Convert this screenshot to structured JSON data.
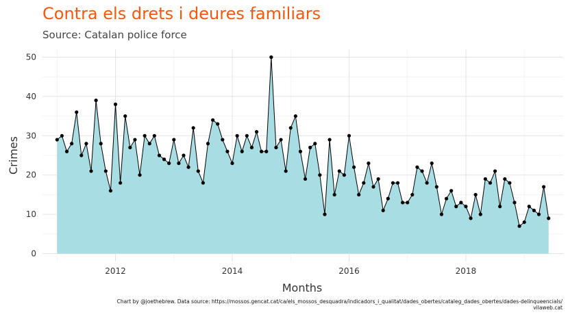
{
  "chart_data": {
    "type": "area",
    "title": "Contra els drets i deures familiars",
    "subtitle": "Source: Catalan police force",
    "xlabel": "Months",
    "ylabel": "Crimes",
    "caption": "Chart by @joethebrew. Data source: https://mossos.gencat.cat/ca/els_mossos_desquadra/indicadors_i_qualitat/dades_obertes/cataleg_dades_obertes/dades-delinqueencials/",
    "caption_site": "vilaweb.cat",
    "x_start": "2011-01",
    "x_ticks": [
      "2012",
      "2014",
      "2016",
      "2018"
    ],
    "xlim": [
      "2010-10",
      "2019-09"
    ],
    "y_ticks": [
      "0",
      "10",
      "20",
      "30",
      "40",
      "50"
    ],
    "ylim": [
      -2,
      52
    ],
    "grid": true,
    "fill_color": "#a8dde3",
    "line_color": "#000000",
    "values": [
      29,
      30,
      26,
      28,
      36,
      25,
      28,
      21,
      39,
      28,
      21,
      16,
      38,
      18,
      35,
      27,
      29,
      20,
      30,
      28,
      30,
      25,
      24,
      23,
      29,
      23,
      25,
      22,
      32,
      21,
      18,
      28,
      34,
      33,
      29,
      26,
      23,
      30,
      26,
      30,
      27,
      31,
      26,
      26,
      50,
      27,
      29,
      21,
      32,
      35,
      26,
      19,
      27,
      28,
      20,
      10,
      29,
      15,
      21,
      20,
      30,
      22,
      15,
      18,
      23,
      17,
      19,
      11,
      14,
      18,
      18,
      13,
      13,
      15,
      22,
      21,
      18,
      23,
      17,
      10,
      14,
      16,
      12,
      13,
      12,
      9,
      15,
      10,
      19,
      18,
      21,
      12,
      19,
      18,
      13,
      7,
      8,
      12,
      11,
      10,
      17,
      9
    ]
  }
}
